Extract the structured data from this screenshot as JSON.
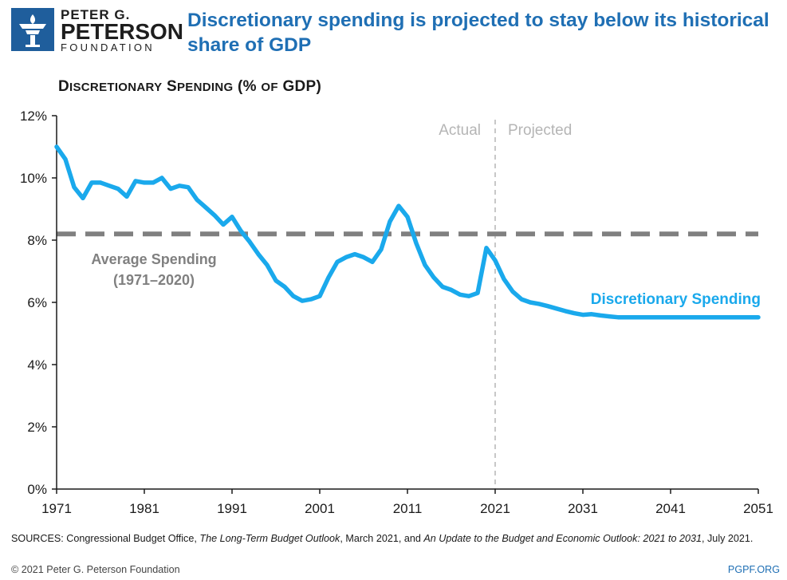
{
  "header": {
    "logo_line1": "PETER G.",
    "logo_line2": "PETERSON",
    "logo_line3": "FOUNDATION",
    "headline": "Discretionary spending is projected to stay below its historical share of GDP"
  },
  "chart_title": {
    "prefix": "D",
    "word1": "iscretionary",
    "mid": " S",
    "word2": "pending",
    "suffix_open": " (% ",
    "of": "of",
    "suffix_close": " GDP)"
  },
  "colors": {
    "series": "#1aa9ec",
    "average": "#808080",
    "divider": "#c8c8c8",
    "headline": "#1f6fb4"
  },
  "chart_data": {
    "type": "line",
    "title": "Discretionary Spending (% of GDP)",
    "xlabel": "",
    "ylabel": "",
    "xlim": [
      1971,
      2051
    ],
    "ylim": [
      0,
      12
    ],
    "x_ticks": [
      "1971",
      "1981",
      "1991",
      "2001",
      "2011",
      "2021",
      "2031",
      "2041",
      "2051"
    ],
    "y_ticks": [
      "0%",
      "2%",
      "4%",
      "6%",
      "8%",
      "10%",
      "12%"
    ],
    "grid": false,
    "divider_year": 2021,
    "actual_label": "Actual",
    "projected_label": "Projected",
    "average": {
      "value": 8.2,
      "label_line1": "Average Spending",
      "label_line2": "(1971–2020)"
    },
    "series": [
      {
        "name": "Discretionary Spending",
        "x": [
          1971,
          1972,
          1973,
          1974,
          1975,
          1976,
          1977,
          1978,
          1979,
          1980,
          1981,
          1982,
          1983,
          1984,
          1985,
          1986,
          1987,
          1988,
          1989,
          1990,
          1991,
          1992,
          1993,
          1994,
          1995,
          1996,
          1997,
          1998,
          1999,
          2000,
          2001,
          2002,
          2003,
          2004,
          2005,
          2006,
          2007,
          2008,
          2009,
          2010,
          2011,
          2012,
          2013,
          2014,
          2015,
          2016,
          2017,
          2018,
          2019,
          2020,
          2021,
          2022,
          2023,
          2024,
          2025,
          2026,
          2027,
          2028,
          2029,
          2030,
          2031,
          2032,
          2033,
          2034,
          2035,
          2036,
          2037,
          2038,
          2039,
          2040,
          2041,
          2042,
          2043,
          2044,
          2045,
          2046,
          2047,
          2048,
          2049,
          2050,
          2051
        ],
        "values": [
          11.0,
          10.6,
          9.7,
          9.35,
          9.85,
          9.85,
          9.75,
          9.65,
          9.4,
          9.9,
          9.85,
          9.85,
          10.0,
          9.65,
          9.75,
          9.7,
          9.3,
          9.05,
          8.8,
          8.5,
          8.75,
          8.3,
          7.95,
          7.55,
          7.2,
          6.7,
          6.5,
          6.2,
          6.05,
          6.1,
          6.2,
          6.8,
          7.3,
          7.45,
          7.55,
          7.45,
          7.3,
          7.7,
          8.6,
          9.1,
          8.75,
          7.9,
          7.2,
          6.8,
          6.5,
          6.4,
          6.25,
          6.2,
          6.3,
          7.75,
          7.35,
          6.75,
          6.35,
          6.1,
          6.0,
          5.95,
          5.88,
          5.8,
          5.72,
          5.65,
          5.6,
          5.62,
          5.58,
          5.55,
          5.52,
          5.52,
          5.52,
          5.52,
          5.52,
          5.52,
          5.52,
          5.52,
          5.52,
          5.52,
          5.52,
          5.52,
          5.52,
          5.52,
          5.52,
          5.52,
          5.52
        ]
      }
    ]
  },
  "footer": {
    "sources_1": "SOURCES: Congressional Budget Office, ",
    "sources_2": "The Long-Term Budget Outlook",
    "sources_3": ", March 2021, and ",
    "sources_4": "An Update to the Budget and Economic Outlook: 2021 to 2031",
    "sources_5": ", July 2021.",
    "copyright": "© 2021 Peter G. Peterson Foundation",
    "site": "PGPF.ORG"
  }
}
